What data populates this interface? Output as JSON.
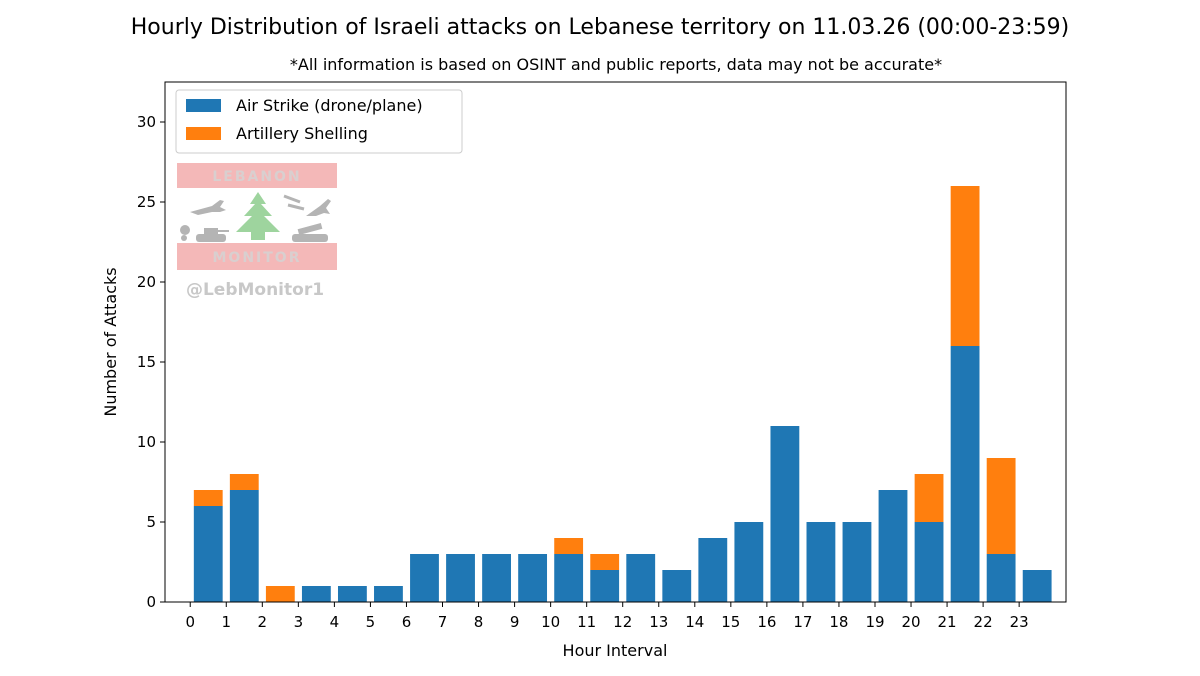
{
  "chart_data": {
    "type": "bar",
    "stacked": true,
    "title": "Hourly Distribution of Israeli attacks on Lebanese territory on 11.03.26 (00:00-23:59)",
    "subtitle": "*All information is based on OSINT and public reports, data may not be accurate*",
    "xlabel": "Hour Interval",
    "ylabel": "Number of Attacks",
    "x_ticks": [
      "0",
      "1",
      "2",
      "3",
      "4",
      "5",
      "6",
      "7",
      "8",
      "9",
      "10",
      "11",
      "12",
      "13",
      "14",
      "15",
      "16",
      "17",
      "18",
      "19",
      "20",
      "21",
      "22",
      "23"
    ],
    "x": [
      0.5,
      1.5,
      2.5,
      3.5,
      4.5,
      5.5,
      6.5,
      7.5,
      8.5,
      9.5,
      10.5,
      11.5,
      12.5,
      13.5,
      14.5,
      15.5,
      16.5,
      17.5,
      18.5,
      19.5,
      20.5,
      21.5,
      22.5,
      23.5
    ],
    "series": [
      {
        "name": "Air Strike (drone/plane)",
        "color": "#1f77b4",
        "values": [
          6,
          7,
          0,
          1,
          1,
          1,
          3,
          3,
          3,
          3,
          3,
          2,
          3,
          2,
          4,
          5,
          11,
          5,
          5,
          7,
          5,
          16,
          3,
          2
        ]
      },
      {
        "name": "Artillery Shelling",
        "color": "#ff7f0e",
        "values": [
          1,
          1,
          1,
          0,
          0,
          0,
          0,
          0,
          0,
          0,
          1,
          1,
          0,
          0,
          0,
          0,
          0,
          0,
          0,
          0,
          3,
          10,
          6,
          0
        ]
      }
    ],
    "xlim": [
      -0.7,
      24.3
    ],
    "ylim": [
      0,
      32.5
    ],
    "y_ticks": [
      0,
      5,
      10,
      15,
      20,
      25,
      30
    ],
    "legend_position": "upper-left",
    "grid": false
  },
  "watermark": {
    "top_text": "LEBANON",
    "bottom_text": "MONITOR",
    "handle": "@LebMonitor1",
    "band_color": "#f4b8b8",
    "band_text_color": "#d9cfcf",
    "handle_color": "#c8c8c8",
    "tree_color": "#9ed49e",
    "icon_color": "#b4b4b4"
  }
}
